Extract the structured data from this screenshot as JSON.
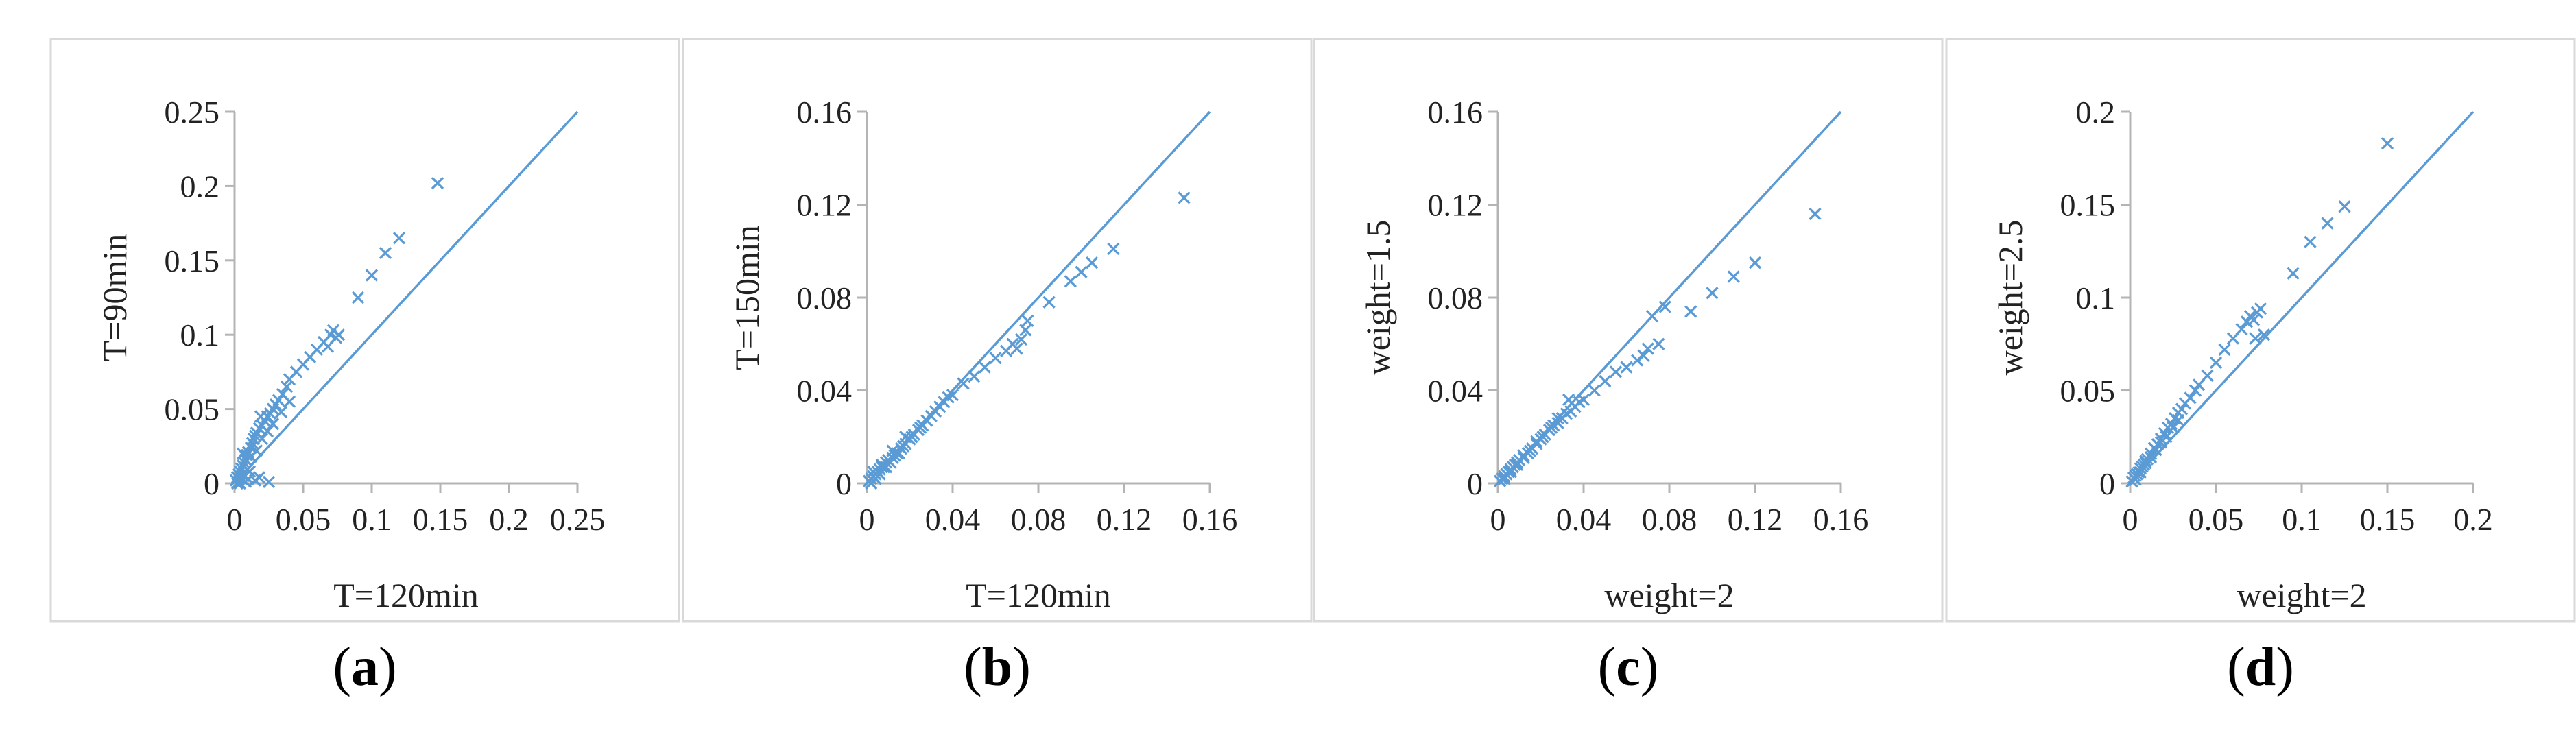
{
  "chart_data": [
    {
      "type": "scatter",
      "caption_letter": "a",
      "xlabel": "T=120min",
      "ylabel": "T=90min",
      "xlim": [
        0,
        0.25
      ],
      "ylim": [
        0,
        0.25
      ],
      "xticks": [
        "0",
        "0.05",
        "0.1",
        "0.15",
        "0.2",
        "0.25"
      ],
      "yticks": [
        "0",
        "0.05",
        "0.1",
        "0.15",
        "0.2",
        "0.25"
      ],
      "reference_line": [
        [
          0,
          0
        ],
        [
          0.25,
          0.25
        ]
      ],
      "series": [
        {
          "name": "points",
          "points": [
            [
              0.001,
              0.002
            ],
            [
              0.002,
              0.004
            ],
            [
              0.003,
              0.001
            ],
            [
              0.003,
              0.006
            ],
            [
              0.004,
              0.008
            ],
            [
              0.005,
              0.003
            ],
            [
              0.005,
              0.01
            ],
            [
              0.006,
              0.012
            ],
            [
              0.007,
              0.005
            ],
            [
              0.007,
              0.014
            ],
            [
              0.008,
              0.016
            ],
            [
              0.009,
              0.019
            ],
            [
              0.01,
              0.021
            ],
            [
              0.011,
              0.008
            ],
            [
              0.012,
              0.024
            ],
            [
              0.013,
              0.027
            ],
            [
              0.014,
              0.03
            ],
            [
              0.015,
              0.032
            ],
            [
              0.016,
              0.034
            ],
            [
              0.018,
              0.037
            ],
            [
              0.019,
              0.045
            ],
            [
              0.02,
              0.039
            ],
            [
              0.022,
              0.042
            ],
            [
              0.024,
              0.045
            ],
            [
              0.026,
              0.047
            ],
            [
              0.028,
              0.05
            ],
            [
              0.03,
              0.053
            ],
            [
              0.032,
              0.056
            ],
            [
              0.035,
              0.06
            ],
            [
              0.038,
              0.065
            ],
            [
              0.04,
              0.07
            ],
            [
              0.045,
              0.075
            ],
            [
              0.05,
              0.08
            ],
            [
              0.055,
              0.085
            ],
            [
              0.06,
              0.09
            ],
            [
              0.065,
              0.095
            ],
            [
              0.07,
              0.1
            ],
            [
              0.072,
              0.103
            ],
            [
              0.074,
              0.098
            ],
            [
              0.076,
              0.1
            ],
            [
              0.068,
              0.092
            ],
            [
              0.09,
              0.125
            ],
            [
              0.1,
              0.14
            ],
            [
              0.11,
              0.155
            ],
            [
              0.12,
              0.165
            ],
            [
              0.148,
              0.202
            ],
            [
              0.025,
              0.001
            ],
            [
              0.015,
              0.002
            ],
            [
              0.008,
              0.001
            ],
            [
              0.002,
              0.0
            ],
            [
              0.004,
              0.0
            ],
            [
              0.01,
              0.003
            ],
            [
              0.018,
              0.004
            ],
            [
              0.006,
              0.02
            ],
            [
              0.012,
              0.018
            ],
            [
              0.016,
              0.022
            ],
            [
              0.02,
              0.03
            ],
            [
              0.024,
              0.035
            ],
            [
              0.028,
              0.04
            ],
            [
              0.034,
              0.048
            ],
            [
              0.04,
              0.055
            ]
          ]
        }
      ]
    },
    {
      "type": "scatter",
      "caption_letter": "b",
      "xlabel": "T=120min",
      "ylabel": "T=150min",
      "xlim": [
        0,
        0.16
      ],
      "ylim": [
        0,
        0.16
      ],
      "xticks": [
        "0",
        "0.04",
        "0.08",
        "0.12",
        "0.16"
      ],
      "yticks": [
        "0",
        "0.04",
        "0.08",
        "0.12",
        "0.16"
      ],
      "reference_line": [
        [
          0,
          0
        ],
        [
          0.16,
          0.16
        ]
      ],
      "series": [
        {
          "name": "points",
          "points": [
            [
              0.001,
              0.001
            ],
            [
              0.002,
              0.002
            ],
            [
              0.003,
              0.003
            ],
            [
              0.004,
              0.004
            ],
            [
              0.005,
              0.005
            ],
            [
              0.006,
              0.006
            ],
            [
              0.007,
              0.007
            ],
            [
              0.008,
              0.007
            ],
            [
              0.009,
              0.009
            ],
            [
              0.01,
              0.01
            ],
            [
              0.012,
              0.011
            ],
            [
              0.014,
              0.013
            ],
            [
              0.016,
              0.015
            ],
            [
              0.018,
              0.017
            ],
            [
              0.02,
              0.019
            ],
            [
              0.022,
              0.021
            ],
            [
              0.024,
              0.023
            ],
            [
              0.026,
              0.025
            ],
            [
              0.028,
              0.027
            ],
            [
              0.03,
              0.029
            ],
            [
              0.032,
              0.031
            ],
            [
              0.034,
              0.033
            ],
            [
              0.036,
              0.035
            ],
            [
              0.038,
              0.037
            ],
            [
              0.04,
              0.038
            ],
            [
              0.045,
              0.043
            ],
            [
              0.05,
              0.046
            ],
            [
              0.055,
              0.05
            ],
            [
              0.06,
              0.054
            ],
            [
              0.065,
              0.057
            ],
            [
              0.068,
              0.06
            ],
            [
              0.07,
              0.058
            ],
            [
              0.072,
              0.062
            ],
            [
              0.074,
              0.066
            ],
            [
              0.075,
              0.07
            ],
            [
              0.085,
              0.078
            ],
            [
              0.095,
              0.087
            ],
            [
              0.1,
              0.091
            ],
            [
              0.105,
              0.095
            ],
            [
              0.115,
              0.101
            ],
            [
              0.148,
              0.123
            ],
            [
              0.003,
              0.005
            ],
            [
              0.006,
              0.004
            ],
            [
              0.009,
              0.007
            ],
            [
              0.012,
              0.014
            ],
            [
              0.015,
              0.013
            ],
            [
              0.018,
              0.02
            ],
            [
              0.002,
              0.0
            ],
            [
              0.004,
              0.002
            ],
            [
              0.007,
              0.008
            ],
            [
              0.011,
              0.009
            ],
            [
              0.013,
              0.012
            ],
            [
              0.017,
              0.016
            ],
            [
              0.021,
              0.02
            ],
            [
              0.025,
              0.024
            ]
          ]
        }
      ]
    },
    {
      "type": "scatter",
      "caption_letter": "c",
      "xlabel": "weight=2",
      "ylabel": "weight=1.5",
      "xlim": [
        0,
        0.16
      ],
      "ylim": [
        0,
        0.16
      ],
      "xticks": [
        "0",
        "0.04",
        "0.08",
        "0.12",
        "0.16"
      ],
      "yticks": [
        "0",
        "0.04",
        "0.08",
        "0.12",
        "0.16"
      ],
      "reference_line": [
        [
          0,
          0
        ],
        [
          0.16,
          0.16
        ]
      ],
      "series": [
        {
          "name": "points",
          "points": [
            [
              0.001,
              0.001
            ],
            [
              0.002,
              0.002
            ],
            [
              0.003,
              0.003
            ],
            [
              0.004,
              0.004
            ],
            [
              0.005,
              0.005
            ],
            [
              0.006,
              0.006
            ],
            [
              0.007,
              0.007
            ],
            [
              0.008,
              0.008
            ],
            [
              0.009,
              0.009
            ],
            [
              0.01,
              0.01
            ],
            [
              0.012,
              0.011
            ],
            [
              0.014,
              0.013
            ],
            [
              0.016,
              0.015
            ],
            [
              0.018,
              0.017
            ],
            [
              0.02,
              0.019
            ],
            [
              0.022,
              0.021
            ],
            [
              0.024,
              0.023
            ],
            [
              0.026,
              0.025
            ],
            [
              0.028,
              0.026
            ],
            [
              0.03,
              0.028
            ],
            [
              0.032,
              0.03
            ],
            [
              0.034,
              0.031
            ],
            [
              0.036,
              0.033
            ],
            [
              0.038,
              0.035
            ],
            [
              0.04,
              0.036
            ],
            [
              0.045,
              0.04
            ],
            [
              0.05,
              0.044
            ],
            [
              0.055,
              0.048
            ],
            [
              0.06,
              0.05
            ],
            [
              0.065,
              0.053
            ],
            [
              0.068,
              0.055
            ],
            [
              0.07,
              0.058
            ],
            [
              0.072,
              0.072
            ],
            [
              0.075,
              0.06
            ],
            [
              0.078,
              0.076
            ],
            [
              0.09,
              0.074
            ],
            [
              0.1,
              0.082
            ],
            [
              0.11,
              0.089
            ],
            [
              0.12,
              0.095
            ],
            [
              0.148,
              0.116
            ],
            [
              0.003,
              0.002
            ],
            [
              0.006,
              0.005
            ],
            [
              0.009,
              0.008
            ],
            [
              0.012,
              0.012
            ],
            [
              0.015,
              0.014
            ],
            [
              0.018,
              0.018
            ],
            [
              0.021,
              0.02
            ],
            [
              0.025,
              0.024
            ],
            [
              0.028,
              0.028
            ],
            [
              0.033,
              0.036
            ]
          ]
        }
      ]
    },
    {
      "type": "scatter",
      "caption_letter": "d",
      "xlabel": "weight=2",
      "ylabel": "weight=2.5",
      "xlim": [
        0,
        0.2
      ],
      "ylim": [
        0,
        0.2
      ],
      "xticks": [
        "0",
        "0.05",
        "0.1",
        "0.15",
        "0.2"
      ],
      "yticks": [
        "0",
        "0.05",
        "0.1",
        "0.15",
        "0.2"
      ],
      "reference_line": [
        [
          0,
          0
        ],
        [
          0.2,
          0.2
        ]
      ],
      "series": [
        {
          "name": "points",
          "points": [
            [
              0.001,
              0.001
            ],
            [
              0.002,
              0.003
            ],
            [
              0.003,
              0.004
            ],
            [
              0.004,
              0.005
            ],
            [
              0.005,
              0.006
            ],
            [
              0.006,
              0.008
            ],
            [
              0.007,
              0.009
            ],
            [
              0.008,
              0.01
            ],
            [
              0.009,
              0.012
            ],
            [
              0.01,
              0.013
            ],
            [
              0.012,
              0.016
            ],
            [
              0.014,
              0.019
            ],
            [
              0.016,
              0.021
            ],
            [
              0.018,
              0.024
            ],
            [
              0.02,
              0.027
            ],
            [
              0.022,
              0.03
            ],
            [
              0.024,
              0.032
            ],
            [
              0.026,
              0.035
            ],
            [
              0.028,
              0.038
            ],
            [
              0.03,
              0.04
            ],
            [
              0.032,
              0.043
            ],
            [
              0.035,
              0.046
            ],
            [
              0.038,
              0.05
            ],
            [
              0.04,
              0.053
            ],
            [
              0.045,
              0.058
            ],
            [
              0.05,
              0.065
            ],
            [
              0.055,
              0.072
            ],
            [
              0.06,
              0.078
            ],
            [
              0.065,
              0.083
            ],
            [
              0.068,
              0.087
            ],
            [
              0.07,
              0.09
            ],
            [
              0.072,
              0.088
            ],
            [
              0.074,
              0.092
            ],
            [
              0.076,
              0.094
            ],
            [
              0.073,
              0.078
            ],
            [
              0.078,
              0.08
            ],
            [
              0.095,
              0.113
            ],
            [
              0.105,
              0.13
            ],
            [
              0.115,
              0.14
            ],
            [
              0.125,
              0.149
            ],
            [
              0.15,
              0.183
            ],
            [
              0.003,
              0.002
            ],
            [
              0.006,
              0.006
            ],
            [
              0.009,
              0.011
            ],
            [
              0.012,
              0.014
            ],
            [
              0.015,
              0.018
            ],
            [
              0.018,
              0.022
            ],
            [
              0.021,
              0.025
            ],
            [
              0.025,
              0.03
            ],
            [
              0.028,
              0.034
            ]
          ]
        }
      ]
    }
  ],
  "styles": {
    "marker_color": "#5b9bd5",
    "axis_color": "#b4b4b4",
    "frame_color": "#d9d9d9"
  }
}
